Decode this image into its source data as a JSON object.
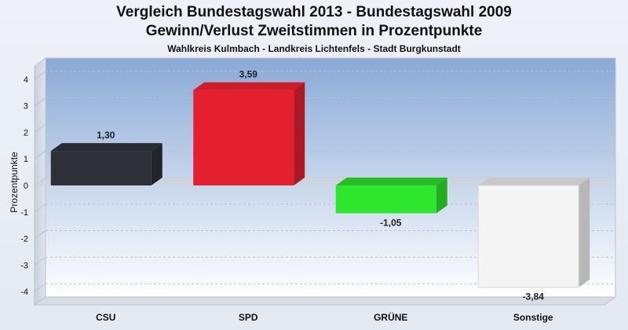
{
  "chart_data": {
    "type": "bar",
    "title": "Vergleich Bundestagswahl 2013 - Bundestagswahl 2009",
    "title_line2": "Gewinn/Verlust Zweitstimmen in Prozentpunkte",
    "subtitle": "Wahlkreis Kulmbach - Landkreis Lichtenfels - Stadt Burgkunstadt",
    "xlabel": "",
    "ylabel": "Prozentpunkte",
    "ylim": [
      -4.5,
      4.5
    ],
    "yticks": [
      4,
      3,
      2,
      1,
      0,
      -1,
      -2,
      -3,
      -4
    ],
    "grid": true,
    "categories": [
      "CSU",
      "SPD",
      "GRÜNE",
      "Sonstige"
    ],
    "values": [
      1.3,
      3.59,
      -1.05,
      -3.84
    ],
    "value_labels": [
      "1,30",
      "3,59",
      "-1,05",
      "-3,84"
    ],
    "colors": [
      "#2e3138",
      "#e5202e",
      "#2ee62e",
      "#f4f4f4"
    ]
  }
}
